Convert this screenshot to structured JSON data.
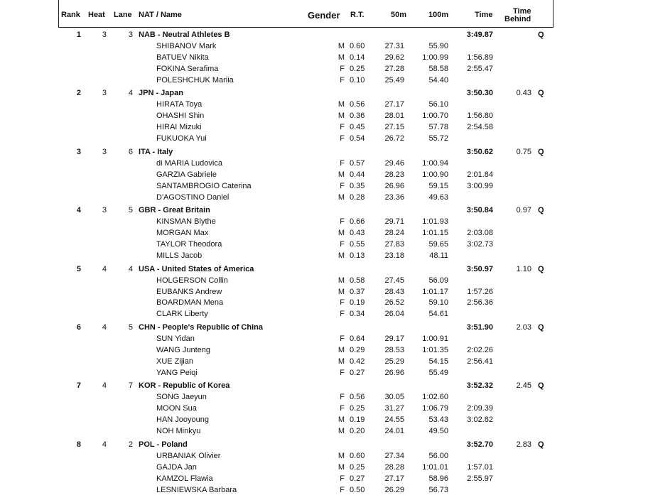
{
  "header": {
    "rank": "Rank",
    "heat": "Heat",
    "lane": "Lane",
    "nat_name": "NAT / Name",
    "gender": "Gender",
    "rt": "R.T.",
    "split50": "50m",
    "split100": "100m",
    "time": "Time",
    "time_behind_1": "Time",
    "time_behind_2": "Behind"
  },
  "teams": [
    {
      "rank": "1",
      "heat": "3",
      "lane": "3",
      "team": "NAB - Neutral Athletes B",
      "time": "3:49.87",
      "behind": "",
      "q": "Q",
      "swimmers": [
        {
          "name": "SHIBANOV Mark",
          "gender": "M",
          "rt": "0.60",
          "s50": "27.31",
          "s100": "55.90",
          "cum": ""
        },
        {
          "name": "BATUEV Nikita",
          "gender": "M",
          "rt": "0.14",
          "s50": "29.62",
          "s100": "1:00.99",
          "cum": "1:56.89"
        },
        {
          "name": "FOKINA Serafima",
          "gender": "F",
          "rt": "0.25",
          "s50": "27.28",
          "s100": "58.58",
          "cum": "2:55.47"
        },
        {
          "name": "POLESHCHUK Mariia",
          "gender": "F",
          "rt": "0.10",
          "s50": "25.49",
          "s100": "54.40",
          "cum": ""
        }
      ]
    },
    {
      "rank": "2",
      "heat": "3",
      "lane": "4",
      "team": "JPN - Japan",
      "time": "3:50.30",
      "behind": "0.43",
      "q": "Q",
      "swimmers": [
        {
          "name": "HIRATA Toya",
          "gender": "M",
          "rt": "0.56",
          "s50": "27.17",
          "s100": "56.10",
          "cum": ""
        },
        {
          "name": "OHASHI Shin",
          "gender": "M",
          "rt": "0.36",
          "s50": "28.01",
          "s100": "1:00.70",
          "cum": "1:56.80"
        },
        {
          "name": "HIRAI Mizuki",
          "gender": "F",
          "rt": "0.45",
          "s50": "27.15",
          "s100": "57.78",
          "cum": "2:54.58"
        },
        {
          "name": "FUKUOKA Yui",
          "gender": "F",
          "rt": "0.54",
          "s50": "26.72",
          "s100": "55.72",
          "cum": ""
        }
      ]
    },
    {
      "rank": "3",
      "heat": "3",
      "lane": "6",
      "team": "ITA - Italy",
      "time": "3:50.62",
      "behind": "0.75",
      "q": "Q",
      "swimmers": [
        {
          "name": "di MARIA Ludovica",
          "gender": "F",
          "rt": "0.57",
          "s50": "29.46",
          "s100": "1:00.94",
          "cum": ""
        },
        {
          "name": "GARZIA Gabriele",
          "gender": "M",
          "rt": "0.44",
          "s50": "28.23",
          "s100": "1:00.90",
          "cum": "2:01.84"
        },
        {
          "name": "SANTAMBROGIO Caterina",
          "gender": "F",
          "rt": "0.35",
          "s50": "26.96",
          "s100": "59.15",
          "cum": "3:00.99"
        },
        {
          "name": "D'AGOSTINO Daniel",
          "gender": "M",
          "rt": "0.28",
          "s50": "23.36",
          "s100": "49.63",
          "cum": ""
        }
      ]
    },
    {
      "rank": "4",
      "heat": "3",
      "lane": "5",
      "team": "GBR - Great Britain",
      "time": "3:50.84",
      "behind": "0.97",
      "q": "Q",
      "swimmers": [
        {
          "name": "KINSMAN Blythe",
          "gender": "F",
          "rt": "0.66",
          "s50": "29.71",
          "s100": "1:01.93",
          "cum": ""
        },
        {
          "name": "MORGAN Max",
          "gender": "M",
          "rt": "0.43",
          "s50": "28.24",
          "s100": "1:01.15",
          "cum": "2:03.08"
        },
        {
          "name": "TAYLOR Theodora",
          "gender": "F",
          "rt": "0.55",
          "s50": "27.83",
          "s100": "59.65",
          "cum": "3:02.73"
        },
        {
          "name": "MILLS Jacob",
          "gender": "M",
          "rt": "0.13",
          "s50": "23.18",
          "s100": "48.11",
          "cum": ""
        }
      ]
    },
    {
      "rank": "5",
      "heat": "4",
      "lane": "4",
      "team": "USA - United States of America",
      "time": "3:50.97",
      "behind": "1.10",
      "q": "Q",
      "swimmers": [
        {
          "name": "HOLGERSON Collin",
          "gender": "M",
          "rt": "0.58",
          "s50": "27.45",
          "s100": "56.09",
          "cum": ""
        },
        {
          "name": "EUBANKS Andrew",
          "gender": "M",
          "rt": "0.37",
          "s50": "28.43",
          "s100": "1:01.17",
          "cum": "1:57.26"
        },
        {
          "name": "BOARDMAN Mena",
          "gender": "F",
          "rt": "0.19",
          "s50": "26.52",
          "s100": "59.10",
          "cum": "2:56.36"
        },
        {
          "name": "CLARK Liberty",
          "gender": "F",
          "rt": "0.34",
          "s50": "26.04",
          "s100": "54.61",
          "cum": ""
        }
      ]
    },
    {
      "rank": "6",
      "heat": "4",
      "lane": "5",
      "team": "CHN - People's Republic of China",
      "time": "3:51.90",
      "behind": "2.03",
      "q": "Q",
      "swimmers": [
        {
          "name": "SUN Yidan",
          "gender": "F",
          "rt": "0.64",
          "s50": "29.17",
          "s100": "1:00.91",
          "cum": ""
        },
        {
          "name": "WANG Junteng",
          "gender": "M",
          "rt": "0.29",
          "s50": "28.53",
          "s100": "1:01.35",
          "cum": "2:02.26"
        },
        {
          "name": "XUE Zijian",
          "gender": "M",
          "rt": "0.42",
          "s50": "25.29",
          "s100": "54.15",
          "cum": "2:56.41"
        },
        {
          "name": "YANG Peiqi",
          "gender": "F",
          "rt": "0.27",
          "s50": "26.96",
          "s100": "55.49",
          "cum": ""
        }
      ]
    },
    {
      "rank": "7",
      "heat": "4",
      "lane": "7",
      "team": "KOR - Republic of Korea",
      "time": "3:52.32",
      "behind": "2.45",
      "q": "Q",
      "swimmers": [
        {
          "name": "SONG Jaeyun",
          "gender": "F",
          "rt": "0.56",
          "s50": "30.05",
          "s100": "1:02.60",
          "cum": ""
        },
        {
          "name": "MOON Sua",
          "gender": "F",
          "rt": "0.25",
          "s50": "31.27",
          "s100": "1:06.79",
          "cum": "2:09.39"
        },
        {
          "name": "HAN Jooyoung",
          "gender": "M",
          "rt": "0.19",
          "s50": "24.55",
          "s100": "53.43",
          "cum": "3:02.82"
        },
        {
          "name": "NOH Minkyu",
          "gender": "M",
          "rt": "0.20",
          "s50": "24.01",
          "s100": "49.50",
          "cum": ""
        }
      ]
    },
    {
      "rank": "8",
      "heat": "4",
      "lane": "2",
      "team": "POL - Poland",
      "time": "3:52.70",
      "behind": "2.83",
      "q": "Q",
      "swimmers": [
        {
          "name": "URBANIAK Olivier",
          "gender": "M",
          "rt": "0.60",
          "s50": "27.34",
          "s100": "56.00",
          "cum": ""
        },
        {
          "name": "GAJDA Jan",
          "gender": "M",
          "rt": "0.25",
          "s50": "28.28",
          "s100": "1:01.01",
          "cum": "1:57.01"
        },
        {
          "name": "KAMZOL Flawia",
          "gender": "F",
          "rt": "0.27",
          "s50": "27.17",
          "s100": "58.96",
          "cum": "2:55.97"
        },
        {
          "name": "LESNIEWSKA Barbara",
          "gender": "F",
          "rt": "0.50",
          "s50": "26.29",
          "s100": "56.73",
          "cum": ""
        }
      ]
    }
  ]
}
